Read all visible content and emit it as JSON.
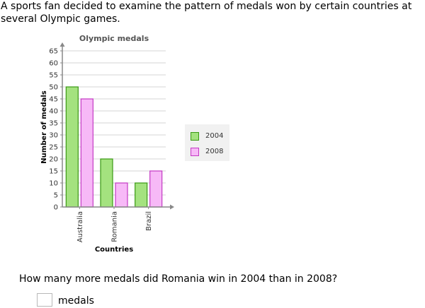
{
  "problem": {
    "intro": "A sports fan decided to examine the pattern of medals won by certain countries at several Olympic games.",
    "question": "How many more medals did Romania win in 2004 than in 2008?",
    "answer_value": "",
    "answer_unit": "medals"
  },
  "colors": {
    "series_2004_fill": "#a4e27f",
    "series_2004_stroke": "#3a9a14",
    "series_2008_fill": "#f7b9f7",
    "series_2008_stroke": "#c43ac4",
    "grid": "#d6d6d6",
    "axis": "#888888",
    "title": "#555555",
    "legend_bg": "#f1f1f1"
  },
  "chart_data": {
    "type": "bar",
    "title": "Olympic medals",
    "xlabel": "Countries",
    "ylabel": "Number of medals",
    "categories": [
      "Australia",
      "Romania",
      "Brazil"
    ],
    "series": [
      {
        "name": "2004",
        "values": [
          50,
          20,
          10
        ]
      },
      {
        "name": "2008",
        "values": [
          45,
          10,
          15
        ]
      }
    ],
    "ylim": [
      0,
      65
    ],
    "yticks": [
      "0",
      "5",
      "10",
      "15",
      "20",
      "25",
      "30",
      "35",
      "40",
      "45",
      "50",
      "55",
      "60",
      "65"
    ],
    "grid": true,
    "legend": "right"
  }
}
